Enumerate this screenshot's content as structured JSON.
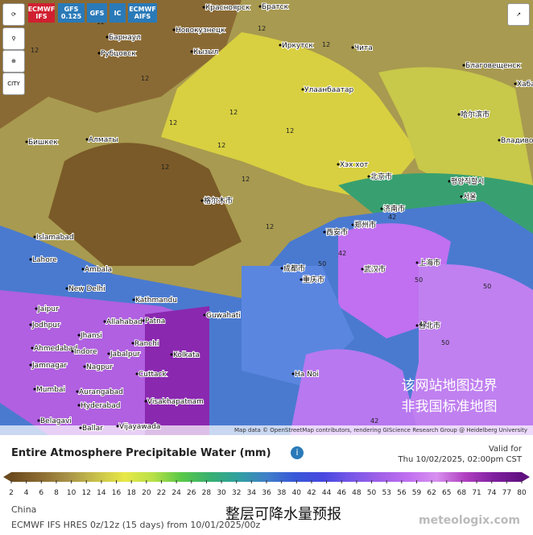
{
  "toolbar": {
    "models": [
      "ECMWF IFS",
      "GFS 0.125",
      "GFS",
      "IC",
      "ECMWF AIFS"
    ]
  },
  "sidebar": {
    "city_button": "CITY"
  },
  "map": {
    "places": [
      "Красноярск",
      "Братск",
      "Новокузнецк",
      "Барнаул",
      "Рубцовск",
      "Кызыл",
      "Иркутск",
      "Чита",
      "Благовещенск",
      "Хабаро",
      "Улаанбаатар",
      "Бишкек",
      "Алматы",
      "Хэх хот",
      "哈尔滨市",
      "Владивосток",
      "평양직할시",
      "Islamabad",
      "Lahore",
      "Ambala",
      "New Delhi",
      "Kathmandu",
      "Jaipur",
      "Allahabad",
      "Patna",
      "Guwahati",
      "Jodhpur",
      "Jhansi",
      "Ranchi",
      "Ahmedabad",
      "Indore",
      "Jabalpur",
      "Kolkata",
      "Nagpur",
      "Jamnagar",
      "Cuttack",
      "Mumbai",
      "Aurangabad",
      "Hyderabad",
      "Visakhapatnam",
      "Belagavi",
      "Vijayawada",
      "Ballar",
      "Ha Noi",
      "上海市",
      "武汉市",
      "重庆市",
      "成都市",
      "西安市",
      "郑州市",
      "济南市",
      "北京市",
      "台北市",
      "格尔木市",
      "서울"
    ],
    "contour_labels": [
      "12",
      "12",
      "12",
      "12",
      "12",
      "12",
      "12",
      "12",
      "12",
      "12",
      "12",
      "12",
      "42",
      "42",
      "50",
      "50",
      "50",
      "42",
      "50",
      "42"
    ],
    "watermark": [
      "该网站地图边界",
      "非我国标准地图"
    ],
    "attribution": "Map data © OpenStreetMap contributors, rendering GIScience Research Group @ Heidelberg University"
  },
  "legend": {
    "title": "Entire Atmosphere Precipitable Water (mm)",
    "valid_label": "Valid for",
    "valid_time": "Thu 10/02/2025, 02:00pm CST",
    "ticks": [
      2,
      4,
      6,
      8,
      10,
      12,
      14,
      16,
      18,
      20,
      22,
      24,
      26,
      28,
      30,
      32,
      34,
      36,
      38,
      40,
      42,
      44,
      46,
      48,
      50,
      53,
      56,
      59,
      62,
      65,
      68,
      71,
      74,
      77,
      80
    ],
    "colors": [
      "#6b4a1e",
      "#8b6a30",
      "#a89248",
      "#c8c04a",
      "#e8e848",
      "#b8e048",
      "#58c848",
      "#38b070",
      "#30a0a0",
      "#4080c8",
      "#3858d8",
      "#4848e0",
      "#7858e8",
      "#a060e8",
      "#c070f0",
      "#d890f0",
      "#b040c0",
      "#8020a0",
      "#601080"
    ]
  },
  "footer": {
    "region": "China",
    "model": "ECMWF IFS HRES 0z/12z (15 days) from 10/01/2025/00z",
    "caption": "整层可降水量预报",
    "brand": "meteologix.com"
  }
}
